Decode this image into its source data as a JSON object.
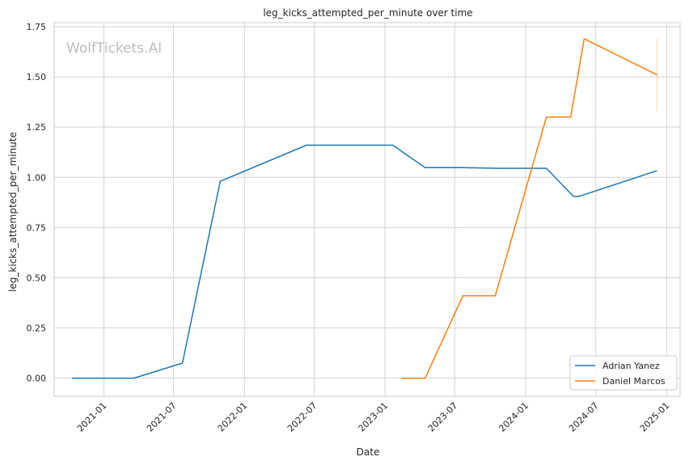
{
  "chart_data": {
    "type": "line",
    "title": "leg_kicks_attempted_per_minute over time",
    "xlabel": "Date",
    "ylabel": "leg_kicks_attempted_per_minute",
    "watermark": "WolfTickets.AI",
    "xlim": [
      "2020-08-25",
      "2025-02-05"
    ],
    "ylim": [
      -0.09,
      1.77
    ],
    "x_ticks": [
      "2021-01",
      "2021-07",
      "2022-01",
      "2022-07",
      "2023-01",
      "2023-07",
      "2024-01",
      "2024-07",
      "2025-01"
    ],
    "y_ticks": [
      "0.00",
      "0.25",
      "0.50",
      "0.75",
      "1.00",
      "1.25",
      "1.50",
      "1.75"
    ],
    "grid": true,
    "legend_position": "bottom-right",
    "series": [
      {
        "name": "Adrian Yanez",
        "color": "#1f77b4",
        "points": [
          [
            "2020-10-10",
            0.0
          ],
          [
            "2021-03-20",
            0.0
          ],
          [
            "2021-07-24",
            0.075
          ],
          [
            "2021-10-30",
            0.98
          ],
          [
            "2022-06-11",
            1.16
          ],
          [
            "2023-01-21",
            1.16
          ],
          [
            "2023-04-15",
            1.048
          ],
          [
            "2023-07-22",
            1.048
          ],
          [
            "2023-10-21",
            1.045
          ],
          [
            "2024-02-24",
            1.045
          ],
          [
            "2024-05-04",
            0.905
          ],
          [
            "2024-05-18",
            0.905
          ],
          [
            "2024-12-07",
            1.033
          ]
        ]
      },
      {
        "name": "Daniel Marcos",
        "color": "#ff7f0e",
        "points": [
          [
            "2023-02-12",
            0.0
          ],
          [
            "2023-04-15",
            0.0
          ],
          [
            "2023-07-22",
            0.41
          ],
          [
            "2023-10-14",
            0.41
          ],
          [
            "2024-02-24",
            1.3
          ],
          [
            "2024-04-27",
            1.3
          ],
          [
            "2024-06-01",
            1.69
          ],
          [
            "2024-12-07",
            1.51
          ]
        ],
        "error_bar": {
          "x": "2024-12-07",
          "low": 1.33,
          "high": 1.69
        }
      }
    ]
  }
}
